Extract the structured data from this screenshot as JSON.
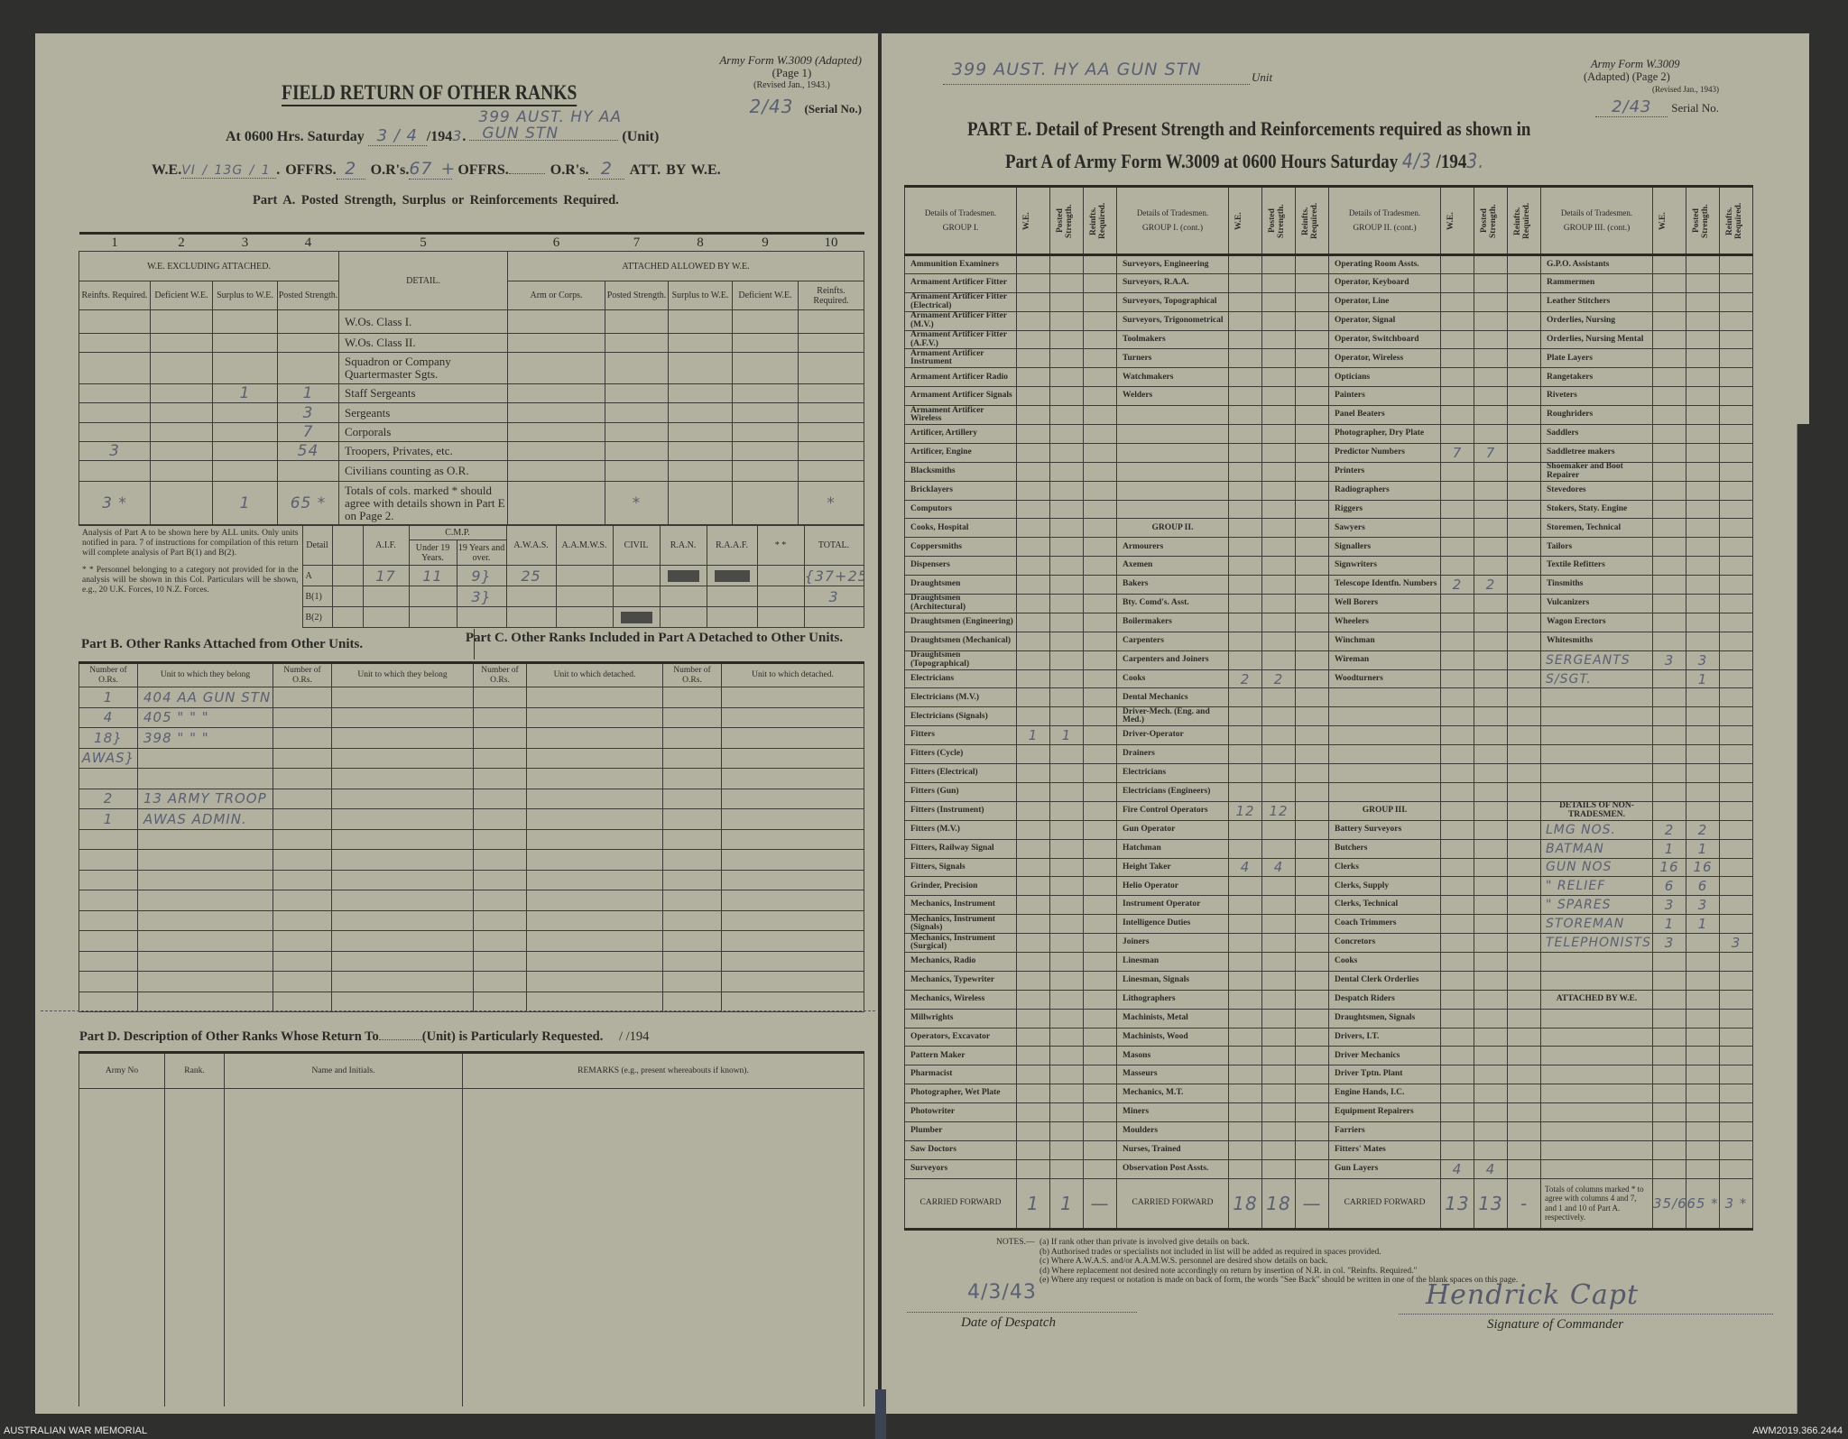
{
  "left": {
    "form_ref": [
      "Army Form W.3009 (Adapted)",
      "(Page 1)",
      "(Revised Jan., 1943.)"
    ],
    "serial_hand": "2/43",
    "serial_label": "(Serial No.)",
    "title": "FIELD RETURN OF OTHER RANKS",
    "at_line": {
      "prefix": "At 0600 Hrs. Saturday",
      "date_hand": "3 / 4",
      "year_print": "/194",
      "year_hand": "3",
      "unit_hand_1": "399 AUST. HY AA",
      "unit_hand_2": "GUN STN",
      "unit_label": "(Unit)"
    },
    "we_line": {
      "we_label": "W.E.",
      "we_hand": "VI / 13G / 1",
      "offrs_label": "OFFRS.",
      "offrs_hand": "2",
      "ors_label": "O.R's.",
      "ors_hand": "67 +",
      "offrs2_label": "OFFRS.",
      "ors2_label": "O.R's.",
      "ors2_hand": "2",
      "att_label": "ATT. BY W.E."
    },
    "part_a": {
      "heading": "Part A.  Posted Strength, Surplus or Reinforcements Required.",
      "col_numbers": [
        "1",
        "2",
        "3",
        "4",
        "5",
        "6",
        "7",
        "8",
        "9",
        "10"
      ],
      "group_we": "W.E. EXCLUDING ATTACHED.",
      "group_detail": "DETAIL.",
      "group_att": "ATTACHED ALLOWED BY W.E.",
      "subheaders": [
        "Reinfts. Required.",
        "Deficient W.E.",
        "Surplus to W.E.",
        "Posted Strength.",
        "Arm or Corps.",
        "Posted Strength.",
        "Surplus to W.E.",
        "Deficient W.E.",
        "Reinfts. Required."
      ],
      "rows": [
        {
          "detail": "W.Os. Class I.",
          "c": [
            "",
            "",
            "",
            "",
            "",
            "",
            "",
            "",
            ""
          ]
        },
        {
          "detail": "W.Os. Class II.",
          "c": [
            "",
            "",
            "",
            "",
            "",
            "",
            "",
            "",
            ""
          ]
        },
        {
          "detail": "Squadron or Company Quartermaster Sgts.",
          "c": [
            "",
            "",
            "",
            "",
            "",
            "",
            "",
            "",
            ""
          ]
        },
        {
          "detail": "Staff Sergeants",
          "c": [
            "",
            "",
            "1",
            "1",
            "",
            "",
            "",
            "",
            ""
          ]
        },
        {
          "detail": "Sergeants",
          "c": [
            "",
            "",
            "",
            "3",
            "",
            "",
            "",
            "",
            ""
          ]
        },
        {
          "detail": "Corporals",
          "c": [
            "",
            "",
            "",
            "7",
            "",
            "",
            "",
            "",
            ""
          ]
        },
        {
          "detail": "Troopers, Privates, etc.",
          "c": [
            "3",
            "",
            "",
            "54",
            "",
            "",
            "",
            "",
            ""
          ]
        },
        {
          "detail": "Civilians counting as O.R.",
          "c": [
            "",
            "",
            "",
            "",
            "",
            "",
            "",
            "",
            ""
          ]
        },
        {
          "detail": "Totals of cols. marked * should agree with details shown in Part E on Page 2.",
          "c": [
            "3 *",
            "",
            "1",
            "65 *",
            "",
            "*",
            "",
            "",
            "*"
          ]
        }
      ]
    },
    "analysis": {
      "intro": "Analysis of Part A to be shown here by ALL units. Only units notified in para. 7 of instructions for compilation of this return will complete analysis of Part B(1) and B(2).",
      "footnote": "* * Personnel belonging to a category not provided for in the analysis will be shown in this Col. Particulars will be shown, e.g., 20 U.K. Forces, 10 N.Z. Forces.",
      "detail_label": "Detail",
      "cmp_label": "C.M.P.",
      "headers": [
        "A.I.F.",
        "Under 19 Years.",
        "19 Years and over.",
        "A.W.A.S.",
        "A.A.M.W.S.",
        "CIVIL",
        "R.A.N.",
        "R.A.A.F.",
        "* *",
        "TOTAL."
      ],
      "rows": [
        {
          "detail": "A",
          "v": [
            "17",
            "11",
            "9}",
            "25",
            "",
            "",
            "#",
            "#",
            "",
            "{37+25"
          ]
        },
        {
          "detail": "B(1)",
          "v": [
            "",
            "",
            "3}",
            "",
            "",
            "",
            "",
            "",
            "",
            "3"
          ]
        },
        {
          "detail": "B(2)",
          "v": [
            "",
            "",
            "",
            "",
            "",
            "#",
            "",
            "",
            "",
            ""
          ]
        }
      ]
    },
    "part_b": {
      "heading": "Part B.  Other Ranks Attached from Other Units.",
      "headers": [
        "Number of O.Rs.",
        "Unit to which they belong",
        "Number of O.Rs.",
        "Unit to which they belong"
      ],
      "rows": [
        [
          "1",
          "404 AA GUN STN"
        ],
        [
          "4",
          "405  \"   \"   \""
        ],
        [
          "18}",
          "398  \"   \"   \""
        ],
        [
          "AWAS}",
          ""
        ],
        [
          "",
          ""
        ],
        [
          "2",
          "13 ARMY TROOP Co."
        ],
        [
          "1",
          "AWAS ADMIN."
        ]
      ]
    },
    "part_c": {
      "heading": "Part C.  Other Ranks Included in Part A Detached to Other Units.",
      "headers": [
        "Number of O.Rs.",
        "Unit to which detached.",
        "Number of O.Rs.",
        "Unit to which detached."
      ]
    },
    "part_d": {
      "heading": "Part D.  Description of Other Ranks Whose Return To",
      "heading_2": "(Unit) is Particularly Requested.",
      "heading_date": "/      /194",
      "headers": [
        "Army No",
        "Rank.",
        "Name and Initials.",
        "REMARKS (e.g., present whereabouts if known)."
      ]
    }
  },
  "right": {
    "unit_hand": "399 AUST. HY AA GUN STN",
    "unit_label": "Unit",
    "form_ref": [
      "Army Form W.3009",
      "(Adapted)  (Page 2)",
      "(Revised Jan., 1943)"
    ],
    "serial_hand": "2/43",
    "serial_label": "Serial No.",
    "title_1": "PART E.  Detail of Present Strength and Reinforcements required as shown in",
    "title_2": "Part A of Army Form W.3009 at 0600 Hours Saturday",
    "title_date_hand": "4/3",
    "title_year": "/194",
    "title_year_hand": "3.",
    "group_headers": [
      [
        "Details of Tradesmen.",
        "GROUP I."
      ],
      [
        "Details of Tradesmen.",
        "GROUP I. (cont.)"
      ],
      [
        "Details of Tradesmen.",
        "GROUP II. (cont.)"
      ],
      [
        "Details of Tradesmen.",
        "GROUP III. (cont.)"
      ]
    ],
    "num_headers": [
      "W.E.",
      "Posted Strength.",
      "Reinfts. Required."
    ],
    "columns": [
      [
        {
          "l": "Ammunition Examiners"
        },
        {
          "l": "Armament Artificer Fitter"
        },
        {
          "l": "Armament Artificer Fitter (Electrical)"
        },
        {
          "l": "Armament Artificer Fitter (M.V.)"
        },
        {
          "l": "Armament Artificer Fitter (A.F.V.)"
        },
        {
          "l": "Armament Artificer Instrument"
        },
        {
          "l": "Armament Artificer Radio"
        },
        {
          "l": "Armament Artificer Signals"
        },
        {
          "l": "Armament Artificer Wireless"
        },
        {
          "l": "Artificer, Artillery"
        },
        {
          "l": "Artificer, Engine"
        },
        {
          "l": "Blacksmiths"
        },
        {
          "l": "Bricklayers"
        },
        {
          "l": "Computors"
        },
        {
          "l": "Cooks, Hospital"
        },
        {
          "l": "Coppersmiths"
        },
        {
          "l": "Dispensers"
        },
        {
          "l": "Draughtsmen"
        },
        {
          "l": "Draughtsmen (Architectural)"
        },
        {
          "l": "Draughtsmen (Engineering)"
        },
        {
          "l": "Draughtsmen (Mechanical)"
        },
        {
          "l": "Draughtsmen (Topographical)"
        },
        {
          "l": "Electricians"
        },
        {
          "l": "Electricians (M.V.)"
        },
        {
          "l": "Electricians (Signals)"
        },
        {
          "l": "Fitters",
          "w": "1",
          "p": "1"
        },
        {
          "l": "Fitters (Cycle)"
        },
        {
          "l": "Fitters (Electrical)"
        },
        {
          "l": "Fitters (Gun)"
        },
        {
          "l": "Fitters (Instrument)"
        },
        {
          "l": "Fitters (M.V.)"
        },
        {
          "l": "Fitters, Railway Signal"
        },
        {
          "l": "Fitters, Signals"
        },
        {
          "l": "Grinder, Precision"
        },
        {
          "l": "Mechanics, Instrument"
        },
        {
          "l": "Mechanics, Instrument (Signals)"
        },
        {
          "l": "Mechanics, Instrument (Surgical)"
        },
        {
          "l": "Mechanics, Radio"
        },
        {
          "l": "Mechanics, Typewriter"
        },
        {
          "l": "Mechanics, Wireless"
        },
        {
          "l": "Millwrights"
        },
        {
          "l": "Operators, Excavator"
        },
        {
          "l": "Pattern Maker"
        },
        {
          "l": "Pharmacist"
        },
        {
          "l": "Photographer, Wet Plate"
        },
        {
          "l": "Photowriter"
        },
        {
          "l": "Plumber"
        },
        {
          "l": "Saw Doctors"
        },
        {
          "l": "Surveyors"
        }
      ],
      [
        {
          "l": "Surveyors, Engineering"
        },
        {
          "l": "Surveyors, R.A.A."
        },
        {
          "l": "Surveyors, Topographical"
        },
        {
          "l": "Surveyors, Trigonometrical"
        },
        {
          "l": "Toolmakers"
        },
        {
          "l": "Turners"
        },
        {
          "l": "Watchmakers"
        },
        {
          "l": "Welders"
        },
        {
          "l": ""
        },
        {
          "l": ""
        },
        {
          "l": ""
        },
        {
          "l": ""
        },
        {
          "l": ""
        },
        {
          "l": ""
        },
        {
          "l": "GROUP II.",
          "head": true
        },
        {
          "l": "Armourers"
        },
        {
          "l": "Axemen"
        },
        {
          "l": "Bakers"
        },
        {
          "l": "Bty. Comd's. Asst."
        },
        {
          "l": "Boilermakers"
        },
        {
          "l": "Carpenters"
        },
        {
          "l": "Carpenters and Joiners"
        },
        {
          "l": "Cooks",
          "w": "2",
          "p": "2"
        },
        {
          "l": "Dental Mechanics"
        },
        {
          "l": "Driver-Mech. (Eng. and Med.)"
        },
        {
          "l": "Driver-Operator"
        },
        {
          "l": "Drainers"
        },
        {
          "l": "Electricians"
        },
        {
          "l": "Electricians (Engineers)"
        },
        {
          "l": "Fire Control Operators",
          "w": "12",
          "p": "12"
        },
        {
          "l": "Gun Operator"
        },
        {
          "l": "Hatchman"
        },
        {
          "l": "Height Taker",
          "w": "4",
          "p": "4"
        },
        {
          "l": "Helio Operator"
        },
        {
          "l": "Instrument Operator"
        },
        {
          "l": "Intelligence Duties"
        },
        {
          "l": "Joiners"
        },
        {
          "l": "Linesman"
        },
        {
          "l": "Linesman, Signals"
        },
        {
          "l": "Lithographers"
        },
        {
          "l": "Machinists, Metal"
        },
        {
          "l": "Machinists, Wood"
        },
        {
          "l": "Masons"
        },
        {
          "l": "Masseurs"
        },
        {
          "l": "Mechanics, M.T."
        },
        {
          "l": "Miners"
        },
        {
          "l": "Moulders"
        },
        {
          "l": "Nurses, Trained"
        },
        {
          "l": "Observation Post Assts."
        }
      ],
      [
        {
          "l": "Operating Room Assts."
        },
        {
          "l": "Operator, Keyboard"
        },
        {
          "l": "Operator, Line"
        },
        {
          "l": "Operator, Signal"
        },
        {
          "l": "Operator, Switchboard"
        },
        {
          "l": "Operator, Wireless"
        },
        {
          "l": "Opticians"
        },
        {
          "l": "Painters"
        },
        {
          "l": "Panel Beaters"
        },
        {
          "l": "Photographer, Dry Plate"
        },
        {
          "l": "Predictor Numbers",
          "w": "7",
          "p": "7"
        },
        {
          "l": "Printers"
        },
        {
          "l": "Radiographers"
        },
        {
          "l": "Riggers"
        },
        {
          "l": "Sawyers"
        },
        {
          "l": "Signallers"
        },
        {
          "l": "Signwriters"
        },
        {
          "l": "Telescope Identfn. Numbers",
          "w": "2",
          "p": "2"
        },
        {
          "l": "Well Borers"
        },
        {
          "l": "Wheelers"
        },
        {
          "l": "Winchman"
        },
        {
          "l": "Wireman"
        },
        {
          "l": "Woodturners"
        },
        {
          "l": ""
        },
        {
          "l": ""
        },
        {
          "l": ""
        },
        {
          "l": ""
        },
        {
          "l": ""
        },
        {
          "l": ""
        },
        {
          "l": "GROUP III.",
          "head": true
        },
        {
          "l": "Battery Surveyors"
        },
        {
          "l": "Butchers"
        },
        {
          "l": "Clerks"
        },
        {
          "l": "Clerks, Supply"
        },
        {
          "l": "Clerks, Technical"
        },
        {
          "l": "Coach Trimmers"
        },
        {
          "l": "Concretors"
        },
        {
          "l": "Cooks"
        },
        {
          "l": "Dental Clerk Orderlies"
        },
        {
          "l": "Despatch Riders"
        },
        {
          "l": "Draughtsmen, Signals"
        },
        {
          "l": "Drivers, I.T."
        },
        {
          "l": "Driver Mechanics"
        },
        {
          "l": "Driver Tptn. Plant"
        },
        {
          "l": "Engine Hands, I.C."
        },
        {
          "l": "Equipment Repairers"
        },
        {
          "l": "Farriers"
        },
        {
          "l": "Fitters' Mates"
        },
        {
          "l": "Gun Layers",
          "w": "4",
          "p": "4"
        }
      ],
      [
        {
          "l": "G.P.O. Assistants"
        },
        {
          "l": "Rammermen"
        },
        {
          "l": "Leather Stitchers"
        },
        {
          "l": "Orderlies, Nursing"
        },
        {
          "l": "Orderlies, Nursing Mental"
        },
        {
          "l": "Plate Layers"
        },
        {
          "l": "Rangetakers"
        },
        {
          "l": "Riveters"
        },
        {
          "l": "Roughriders"
        },
        {
          "l": "Saddlers"
        },
        {
          "l": "Saddletree makers"
        },
        {
          "l": "Shoemaker and Boot Repairer"
        },
        {
          "l": "Stevedores"
        },
        {
          "l": "Stokers, Staty. Engine"
        },
        {
          "l": "Storemen, Technical"
        },
        {
          "l": "Tailors"
        },
        {
          "l": "Textile Refitters"
        },
        {
          "l": "Tinsmiths"
        },
        {
          "l": "Vulcanizers"
        },
        {
          "l": "Wagon Erectors"
        },
        {
          "l": "Whitesmiths"
        },
        {
          "l": "SERGEANTS",
          "h": true,
          "w": "3",
          "p": "3"
        },
        {
          "l": "S/SGT.",
          "h": true,
          "p": "1"
        },
        {
          "l": ""
        },
        {
          "l": ""
        },
        {
          "l": ""
        },
        {
          "l": ""
        },
        {
          "l": ""
        },
        {
          "l": ""
        },
        {
          "l": "DETAILS OF NON-TRADESMEN.",
          "head": true
        },
        {
          "l": "LMG NOS.",
          "h": true,
          "w": "2",
          "p": "2"
        },
        {
          "l": "BATMAN",
          "h": true,
          "w": "1",
          "p": "1"
        },
        {
          "l": "GUN NOS",
          "h": true,
          "w": "16",
          "p": "16"
        },
        {
          "l": "\" RELIEF",
          "h": true,
          "w": "6",
          "p": "6"
        },
        {
          "l": "\" SPARES",
          "h": true,
          "w": "3",
          "p": "3"
        },
        {
          "l": "STOREMAN",
          "h": true,
          "w": "1",
          "p": "1"
        },
        {
          "l": "TELEPHONISTS",
          "h": true,
          "w": "3",
          "r": "3"
        },
        {
          "l": ""
        },
        {
          "l": ""
        },
        {
          "l": "ATTACHED BY W.E.",
          "head": true
        },
        {
          "l": ""
        },
        {
          "l": ""
        },
        {
          "l": ""
        },
        {
          "l": ""
        },
        {
          "l": ""
        },
        {
          "l": ""
        },
        {
          "l": ""
        },
        {
          "l": ""
        },
        {
          "l": ""
        }
      ]
    ],
    "carried_forward_label": "CARRIED FORWARD",
    "carried_forward": [
      [
        "1",
        "1",
        "—"
      ],
      [
        "18",
        "18",
        "—"
      ],
      [
        "13",
        "13",
        "-"
      ]
    ],
    "totals_note": "Totals of columns marked * to agree with columns 4 and 7, and 1 and 10 of Part A. respectively.",
    "totals": [
      "35/67",
      "65 *",
      "3 *"
    ],
    "notes_label": "NOTES.—",
    "notes": [
      "(a) If rank other than private is involved give details on back.",
      "(b) Authorised trades or specialists not included in list will be added as required in spaces provided.",
      "(c) Where A.W.A.S. and/or A.A.M.W.S. personnel are desired show details on back.",
      "(d) Where replacement not desired note accordingly on return by insertion of N.R. in col. \"Reinfts. Required.\"",
      "(e) Where any request or notation is made on back of form, the words \"See Back\" should be written in one of the blank spaces on this page."
    ],
    "despatch_hand": "4/3/43",
    "despatch_label": "Date of Despatch",
    "signature": "Hendrick Capt",
    "signature_label": "Signature of Commander"
  },
  "footer": {
    "left": "AUSTRALIAN WAR MEMORIAL",
    "right": "AWM2019.366.2444"
  },
  "colors": {
    "paper": "#b2b1a0",
    "ink": "#2a2a26",
    "pencil": "#5a6072",
    "background": "#2f302d"
  }
}
